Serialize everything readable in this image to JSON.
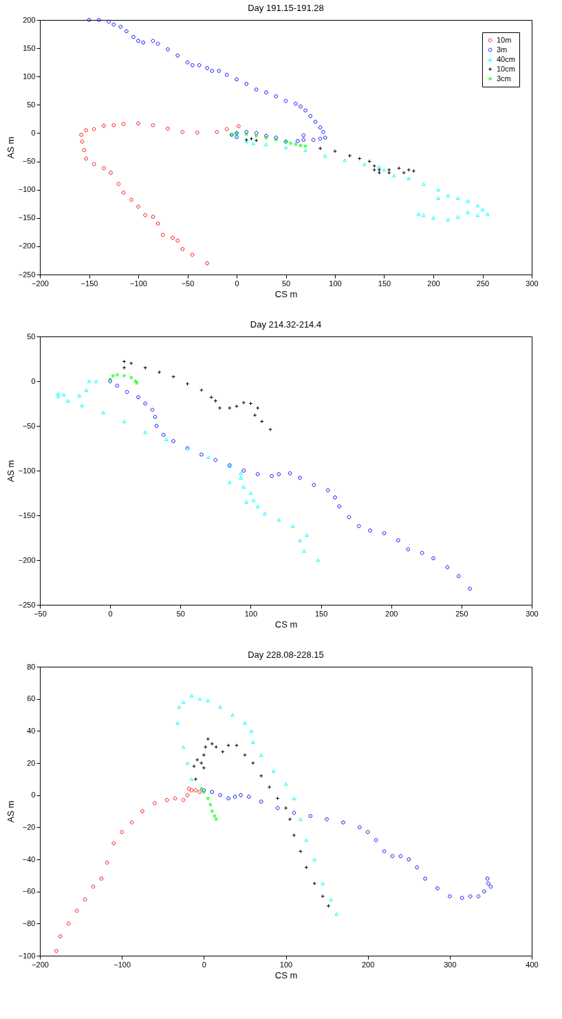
{
  "chart_data": [
    {
      "type": "scatter",
      "title": "Day 191.15-191.28",
      "xlabel": "CS m",
      "ylabel": "AS m",
      "xlim": [
        -200,
        300
      ],
      "ylim": [
        -250,
        200
      ],
      "xticks": [
        -200,
        -150,
        -100,
        -50,
        0,
        50,
        100,
        150,
        200,
        250,
        300
      ],
      "yticks": [
        -250,
        -200,
        -150,
        -100,
        -50,
        0,
        50,
        100,
        150,
        200
      ],
      "grid": false,
      "legend": "top right",
      "series": [
        {
          "name": "10m",
          "color": "#ff0000",
          "marker": "circle",
          "x": [
            2,
            -10,
            -20,
            -40,
            -55,
            -70,
            -85,
            -100,
            -115,
            -125,
            -135,
            -145,
            -153,
            -158,
            -157,
            -155,
            -153,
            -145,
            -135,
            -128,
            -120,
            -115,
            -107,
            -100,
            -93,
            -85,
            -80,
            -75,
            -65,
            -60,
            -55,
            -45,
            -30
          ],
          "values": [
            12,
            7,
            2,
            1,
            2,
            8,
            14,
            17,
            16,
            14,
            13,
            7,
            5,
            -3,
            -15,
            -30,
            -45,
            -55,
            -62,
            -70,
            -90,
            -105,
            -118,
            -130,
            -145,
            -148,
            -160,
            -180,
            -185,
            -190,
            -205,
            -215,
            -230
          ]
        },
        {
          "name": "3m",
          "color": "#0000ff",
          "marker": "circle",
          "x": [
            -150,
            -140,
            -130,
            -125,
            -118,
            -112,
            -105,
            -100,
            -95,
            -85,
            -80,
            -70,
            -60,
            -50,
            -45,
            -38,
            -30,
            -25,
            -18,
            -10,
            0,
            10,
            20,
            30,
            40,
            50,
            60,
            65,
            70,
            75,
            80,
            85,
            88,
            90,
            85,
            78,
            68,
            68,
            62,
            50,
            40,
            30,
            20,
            10,
            0,
            -5,
            0
          ],
          "values": [
            200,
            200,
            197,
            192,
            188,
            180,
            170,
            163,
            160,
            163,
            158,
            148,
            137,
            125,
            120,
            120,
            115,
            110,
            110,
            103,
            95,
            87,
            77,
            72,
            65,
            57,
            52,
            47,
            40,
            30,
            20,
            10,
            2,
            -8,
            -10,
            -12,
            -12,
            -4,
            -14,
            -15,
            -8,
            -5,
            0,
            2,
            0,
            -3,
            -7
          ]
        },
        {
          "name": "40cm",
          "color": "#00ffff",
          "marker": "triangle",
          "x": [
            0,
            10,
            17,
            30,
            50,
            70,
            90,
            110,
            130,
            145,
            150,
            160,
            175,
            190,
            205,
            205,
            215,
            225,
            235,
            245,
            250,
            255,
            245,
            235,
            225,
            215,
            200,
            190,
            185
          ],
          "values": [
            -3,
            -15,
            -18,
            -20,
            -25,
            -30,
            -40,
            -48,
            -55,
            -60,
            -65,
            -75,
            -80,
            -90,
            -100,
            -115,
            -110,
            -115,
            -120,
            -128,
            -135,
            -143,
            -145,
            -140,
            -148,
            -153,
            -150,
            -145,
            -143
          ]
        },
        {
          "name": "10cm",
          "color": "#000000",
          "marker": "cross",
          "x": [
            10,
            15,
            20,
            85,
            100,
            115,
            125,
            135,
            140,
            145,
            155,
            165,
            175,
            180,
            170,
            155,
            145,
            140
          ],
          "values": [
            -12,
            -10,
            -13,
            -27,
            -32,
            -40,
            -45,
            -50,
            -58,
            -65,
            -65,
            -62,
            -65,
            -67,
            -70,
            -70,
            -70,
            -65
          ]
        },
        {
          "name": "3cm",
          "color": "#00ff00",
          "marker": "star",
          "x": [
            -5,
            0,
            10,
            20,
            30,
            40,
            50,
            55,
            60,
            65,
            70
          ],
          "values": [
            -2,
            0,
            -2,
            -5,
            -8,
            -12,
            -15,
            -18,
            -20,
            -22,
            -23
          ]
        }
      ]
    },
    {
      "type": "scatter",
      "title": "Day 214.32-214.4",
      "xlabel": "CS m",
      "ylabel": "AS m",
      "xlim": [
        -50,
        300
      ],
      "ylim": [
        -250,
        50
      ],
      "xticks": [
        -50,
        0,
        50,
        100,
        150,
        200,
        250,
        300
      ],
      "yticks": [
        -250,
        -200,
        -150,
        -100,
        -50,
        0,
        50
      ],
      "grid": false,
      "series": [
        {
          "color": "#0000ff",
          "marker": "circle",
          "x": [
            0,
            5,
            12,
            20,
            25,
            30,
            32,
            33,
            38,
            45,
            55,
            65,
            75,
            85,
            95,
            105,
            115,
            120,
            128,
            135,
            145,
            155,
            160,
            163,
            170,
            177,
            185,
            195,
            205,
            212,
            222,
            230,
            240,
            248,
            256
          ],
          "values": [
            0,
            -5,
            -12,
            -18,
            -25,
            -32,
            -40,
            -50,
            -60,
            -67,
            -75,
            -82,
            -88,
            -94,
            -100,
            -104,
            -106,
            -104,
            -103,
            -108,
            -116,
            -122,
            -130,
            -140,
            -152,
            -162,
            -167,
            -170,
            -178,
            -188,
            -192,
            -198,
            -208,
            -218,
            -232
          ]
        },
        {
          "color": "#00ffff",
          "marker": "triangle",
          "x": [
            -10,
            -15,
            -17,
            -22,
            -33,
            -37,
            -37,
            -30,
            -20,
            -5,
            10,
            25,
            40,
            55,
            70,
            85,
            93,
            93,
            85,
            95,
            100,
            102,
            97,
            105,
            110,
            120,
            130,
            140,
            135,
            138,
            148
          ],
          "values": [
            0,
            0,
            -10,
            -16,
            -15,
            -14,
            -17,
            -22,
            -27,
            -35,
            -45,
            -57,
            -65,
            -75,
            -85,
            -95,
            -103,
            -108,
            -113,
            -118,
            -125,
            -133,
            -135,
            -140,
            -148,
            -155,
            -162,
            -172,
            -178,
            -190,
            -200
          ]
        },
        {
          "color": "#000000",
          "marker": "cross",
          "x": [
            10,
            10,
            15,
            25,
            35,
            45,
            55,
            65,
            72,
            75,
            78,
            85,
            90,
            95,
            100,
            105,
            103,
            108,
            114
          ],
          "values": [
            15,
            22,
            20,
            15,
            10,
            5,
            -3,
            -10,
            -18,
            -22,
            -30,
            -30,
            -28,
            -24,
            -25,
            -30,
            -38,
            -45,
            -54
          ]
        },
        {
          "color": "#00ff00",
          "marker": "star",
          "x": [
            0,
            2,
            5,
            10,
            15,
            18,
            19
          ],
          "values": [
            2,
            6,
            7,
            6,
            4,
            0,
            -2
          ]
        }
      ]
    },
    {
      "type": "scatter",
      "title": "Day 228.08-228.15",
      "xlabel": "CS m",
      "ylabel": "AS m",
      "xlim": [
        -200,
        400
      ],
      "ylim": [
        -100,
        80
      ],
      "xticks": [
        -200,
        -100,
        0,
        100,
        200,
        300,
        400
      ],
      "yticks": [
        -100,
        -80,
        -60,
        -40,
        -20,
        0,
        20,
        40,
        60,
        80
      ],
      "grid": false,
      "series": [
        {
          "color": "#ff0000",
          "marker": "circle",
          "x": [
            -180,
            -175,
            -165,
            -155,
            -145,
            -135,
            -125,
            -118,
            -110,
            -100,
            -88,
            -75,
            -60,
            -45,
            -35,
            -25,
            -20,
            -18,
            -15,
            -10,
            -5
          ],
          "values": [
            -97,
            -88,
            -80,
            -72,
            -65,
            -57,
            -52,
            -42,
            -30,
            -23,
            -17,
            -10,
            -5,
            -3,
            -2,
            -3,
            0,
            4,
            3,
            3,
            2
          ]
        },
        {
          "color": "#0000ff",
          "marker": "circle",
          "x": [
            0,
            10,
            20,
            30,
            38,
            45,
            55,
            70,
            90,
            110,
            130,
            150,
            170,
            190,
            200,
            210,
            220,
            230,
            240,
            250,
            260,
            270,
            285,
            300,
            315,
            325,
            335,
            342,
            347,
            346,
            350
          ],
          "values": [
            3,
            2,
            0,
            -2,
            -1,
            0,
            -1,
            -4,
            -8,
            -11,
            -13,
            -15,
            -17,
            -20,
            -23,
            -28,
            -35,
            -38,
            -38,
            -40,
            -45,
            -52,
            -58,
            -63,
            -64,
            -63,
            -63,
            -60,
            -55,
            -52,
            -57
          ]
        },
        {
          "color": "#00ffff",
          "marker": "triangle",
          "x": [
            -15,
            -20,
            -25,
            -32,
            -30,
            -25,
            -15,
            -5,
            5,
            20,
            35,
            50,
            58,
            60,
            70,
            85,
            100,
            110,
            118,
            125,
            135,
            145,
            155,
            162
          ],
          "values": [
            10,
            20,
            30,
            45,
            55,
            58,
            62,
            60,
            59,
            55,
            50,
            45,
            40,
            33,
            25,
            15,
            7,
            -2,
            -15,
            -28,
            -40,
            -55,
            -65,
            -74
          ]
        },
        {
          "color": "#000000",
          "marker": "cross",
          "x": [
            -10,
            -12,
            -8,
            -3,
            0,
            0,
            2,
            5,
            10,
            15,
            23,
            30,
            40,
            50,
            60,
            70,
            80,
            90,
            100,
            105,
            110,
            118,
            125,
            135,
            145,
            152
          ],
          "values": [
            10,
            18,
            22,
            20,
            17,
            25,
            30,
            35,
            32,
            30,
            27,
            31,
            31,
            25,
            20,
            12,
            5,
            -2,
            -8,
            -15,
            -25,
            -35,
            -45,
            -55,
            -63,
            -69
          ]
        },
        {
          "color": "#00ff00",
          "marker": "star",
          "x": [
            -3,
            0,
            5,
            8,
            10,
            13,
            15
          ],
          "values": [
            4,
            2,
            -2,
            -6,
            -10,
            -13,
            -15
          ]
        }
      ]
    }
  ]
}
